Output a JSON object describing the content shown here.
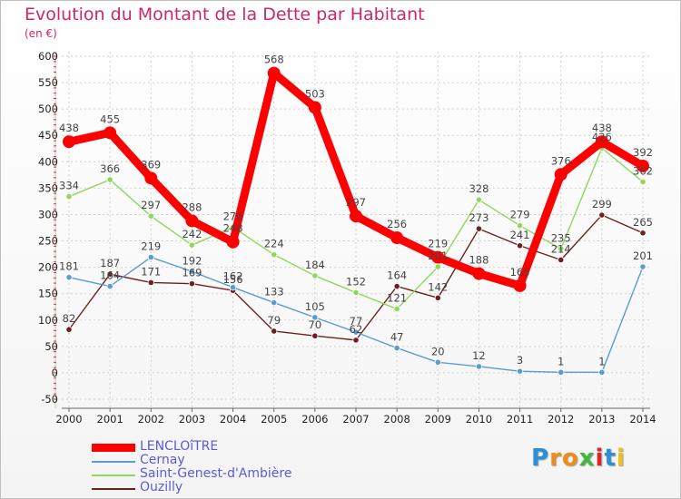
{
  "title": "Evolution du Montant de la Dette par Habitant",
  "unit_label": "(en €)",
  "logo": {
    "text": "Proxiti",
    "letters": [
      "P",
      "r",
      "o",
      "x",
      "i",
      "t",
      "i"
    ],
    "colors": [
      "#2a8fd6",
      "#f08c1a",
      "#f08c1a",
      "#3cb83c",
      "#d62a2a",
      "#2a8fd6",
      "#f0c01a"
    ]
  },
  "chart_data": {
    "type": "line",
    "x": [
      "2000",
      "2001",
      "2002",
      "2003",
      "2004",
      "2005",
      "2006",
      "2007",
      "2008",
      "2009",
      "2010",
      "2011",
      "2012",
      "2013",
      "2014"
    ],
    "ylim": [
      -50,
      600
    ],
    "yticks": [
      "-50",
      "0",
      "50",
      "100",
      "150",
      "200",
      "250",
      "300",
      "350",
      "400",
      "450",
      "500",
      "550",
      "600"
    ],
    "grid": true,
    "legend_position": "bottom-left",
    "series": [
      {
        "name": "LENCLOîTRE",
        "color": "#ff0000",
        "values": [
          438,
          455,
          369,
          288,
          248,
          568,
          503,
          297,
          256,
          219,
          188,
          165,
          376,
          438,
          392
        ],
        "labels": [
          "438",
          "455",
          "369",
          "288",
          "248",
          "568",
          "503",
          "297",
          "256",
          "219",
          "188",
          "165",
          "376",
          "438",
          "392"
        ]
      },
      {
        "name": "Cernay",
        "color": "#5a9bd4",
        "values": [
          181,
          164,
          219,
          192,
          162,
          133,
          105,
          77,
          47,
          20,
          12,
          3,
          1,
          1,
          201
        ],
        "labels": [
          "181",
          "164",
          "219",
          "192",
          "162",
          "133",
          "105",
          "77",
          "47",
          "20",
          "12",
          "3",
          "1",
          "1",
          "201"
        ]
      },
      {
        "name": "Saint-Genest-d'Ambière",
        "color": "#8ed85a",
        "values": [
          334,
          366,
          297,
          242,
          276,
          224,
          184,
          152,
          121,
          201,
          328,
          279,
          235,
          426,
          362
        ],
        "labels": [
          "334",
          "366",
          "297",
          "242",
          "276",
          "224",
          "184",
          "152",
          "121",
          "201",
          "328",
          "279",
          "235",
          "426",
          "362"
        ]
      },
      {
        "name": "Ouzilly",
        "color": "#6e2020",
        "values": [
          82,
          187,
          171,
          169,
          156,
          79,
          70,
          62,
          164,
          142,
          273,
          241,
          214,
          299,
          265
        ],
        "labels": [
          "82",
          "187",
          "171",
          "169",
          "156",
          "79",
          "70",
          "62",
          "164",
          "142",
          "273",
          "241",
          "214",
          "299",
          "265"
        ]
      }
    ]
  }
}
